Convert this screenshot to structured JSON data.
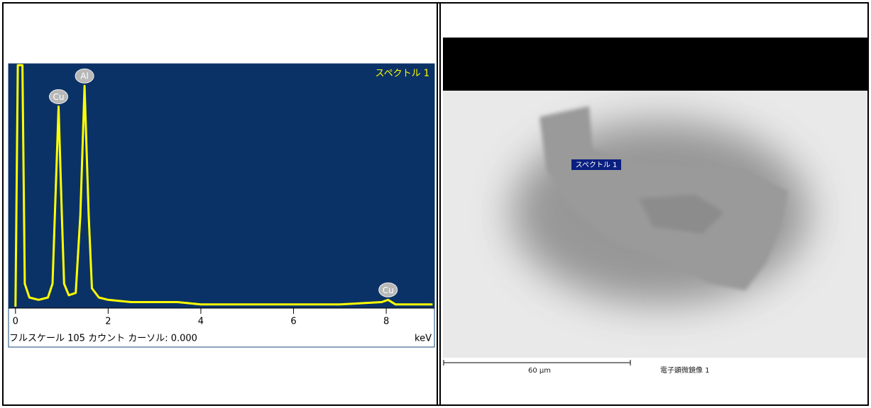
{
  "chart_data": {
    "type": "line",
    "title": "スペクトル 1",
    "x": [
      0.0,
      0.05,
      0.1,
      0.15,
      0.2,
      0.3,
      0.5,
      0.7,
      0.8,
      0.85,
      0.93,
      1.0,
      1.05,
      1.15,
      1.3,
      1.4,
      1.49,
      1.58,
      1.65,
      1.8,
      2.0,
      2.5,
      3.0,
      3.5,
      4.0,
      5.0,
      6.0,
      7.0,
      7.9,
      8.04,
      8.2,
      9.0
    ],
    "values": [
      0,
      105,
      105,
      105,
      10,
      4,
      3,
      4,
      10,
      40,
      87,
      40,
      10,
      5,
      6,
      40,
      96,
      40,
      8,
      4,
      3,
      2,
      2,
      2,
      1,
      1,
      1,
      1,
      2,
      3,
      1,
      1
    ],
    "color": "#ffff00",
    "xlim": [
      -0.15,
      9.04
    ],
    "ylim": [
      0,
      105
    ],
    "xticks": [
      0,
      2,
      4,
      6,
      8
    ],
    "x_label": "keV",
    "footer": "フルスケール 105 カウント カーソル: 0.000",
    "annotations": [
      {
        "label": "Cu",
        "x": 0.93
      },
      {
        "label": "Al",
        "x": 1.49
      },
      {
        "label": "Cu",
        "x": 8.04
      }
    ]
  },
  "sem_image": {
    "spectrum_label": "スペクトル 1",
    "scale_label": "60 µm",
    "caption": "電子顕微鏡像 1"
  }
}
